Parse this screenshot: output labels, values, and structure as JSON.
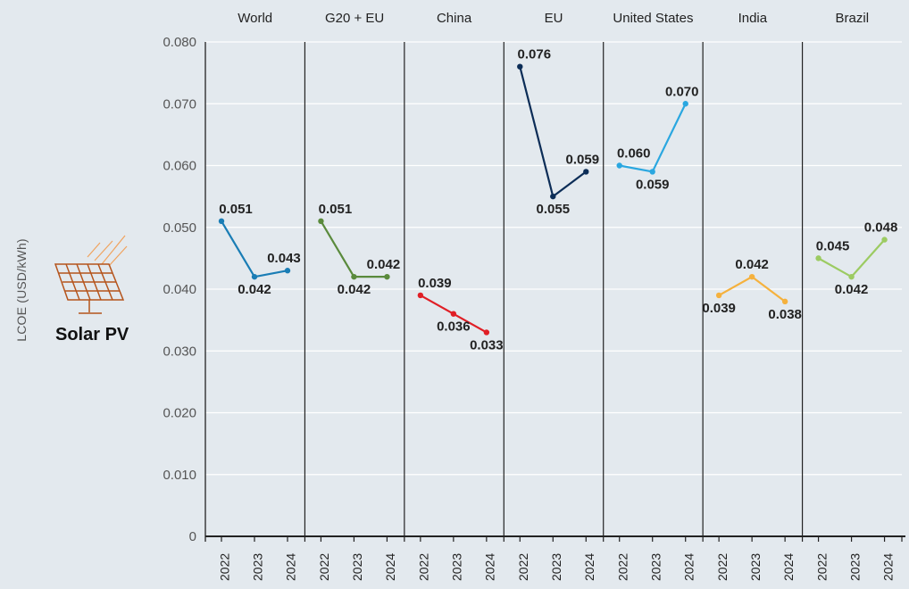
{
  "technology": "Solar PV",
  "icon": "solar-panel-icon",
  "chart_data": {
    "type": "line",
    "ylabel": "LCOE (USD/kWh)",
    "ylim": [
      0,
      0.08
    ],
    "yticks": [
      "0",
      "0.010",
      "0.020",
      "0.030",
      "0.040",
      "0.050",
      "0.060",
      "0.070",
      "0.080"
    ],
    "ytick_values": [
      0,
      0.01,
      0.02,
      0.03,
      0.04,
      0.05,
      0.06,
      0.07,
      0.08
    ],
    "x": [
      "2022",
      "2023",
      "2024"
    ],
    "grid": true,
    "panels": [
      {
        "name": "World",
        "color": "#1a7db5",
        "values": [
          0.051,
          0.042,
          0.043
        ],
        "labels": [
          "0.051",
          "0.042",
          "0.043"
        ]
      },
      {
        "name": "G20 + EU",
        "color": "#5a8a3c",
        "values": [
          0.051,
          0.042,
          0.042
        ],
        "labels": [
          "0.051",
          "0.042",
          "0.042"
        ]
      },
      {
        "name": "China",
        "color": "#e01f26",
        "values": [
          0.039,
          0.036,
          0.033
        ],
        "labels": [
          "0.039",
          "0.036",
          "0.033"
        ]
      },
      {
        "name": "EU",
        "color": "#0c2d57",
        "values": [
          0.076,
          0.055,
          0.059
        ],
        "labels": [
          "0.076",
          "0.055",
          "0.059"
        ]
      },
      {
        "name": "United States",
        "color": "#2aa7e0",
        "values": [
          0.06,
          0.059,
          0.07
        ],
        "labels": [
          "0.060",
          "0.059",
          "0.070"
        ]
      },
      {
        "name": "India",
        "color": "#f5b13d",
        "values": [
          0.039,
          0.042,
          0.038
        ],
        "labels": [
          "0.039",
          "0.042",
          "0.038"
        ]
      },
      {
        "name": "Brazil",
        "color": "#9ccb62",
        "values": [
          0.045,
          0.042,
          0.048
        ],
        "labels": [
          "0.045",
          "0.042",
          "0.048"
        ]
      }
    ]
  }
}
